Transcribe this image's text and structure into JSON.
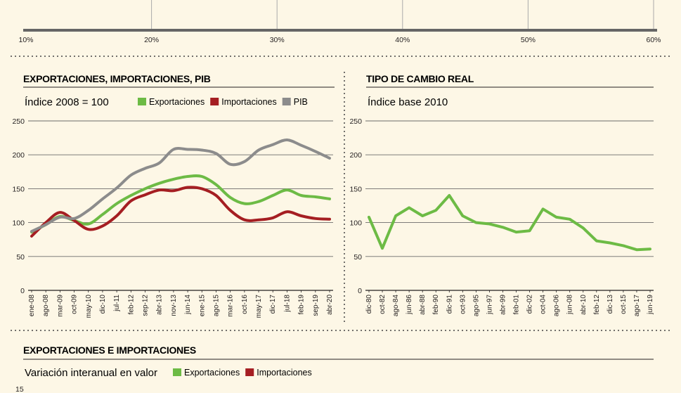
{
  "top_axis": {
    "ticks": [
      "10%",
      "20%",
      "30%",
      "40%",
      "50%",
      "60%"
    ]
  },
  "chart_data": [
    {
      "type": "line",
      "title": "EXPORTACIONES, IMPORTACIONES, PIB",
      "subtitle": "Índice 2008 = 100",
      "yticks": [
        0,
        50,
        100,
        150,
        200,
        250
      ],
      "ylim": [
        0,
        250
      ],
      "grid": true,
      "legend_placement": "top",
      "categories": [
        "ene-08",
        "ago-08",
        "mar-09",
        "oct-09",
        "may-10",
        "dic-10",
        "jul-11",
        "feb-12",
        "sep-12",
        "abr-13",
        "nov-13",
        "jun-14",
        "ene-15",
        "ago-15",
        "mar-16",
        "oct-16",
        "may-17",
        "dic-17",
        "jul-18",
        "feb-19",
        "sep-19",
        "abr-20"
      ],
      "series": [
        {
          "name": "Exportaciones",
          "color": "#6dbb45",
          "values": [
            86,
            97,
            109,
            103,
            98,
            112,
            128,
            140,
            150,
            158,
            164,
            168,
            168,
            156,
            137,
            128,
            131,
            140,
            148,
            140,
            138,
            135
          ]
        },
        {
          "name": "Importaciones",
          "color": "#a51e22",
          "values": [
            80,
            100,
            115,
            103,
            90,
            95,
            110,
            132,
            141,
            148,
            147,
            152,
            150,
            140,
            118,
            104,
            104,
            107,
            116,
            110,
            106,
            105
          ]
        },
        {
          "name": "PIB",
          "color": "#8c8c8c",
          "values": [
            87,
            97,
            108,
            106,
            118,
            135,
            151,
            170,
            180,
            188,
            208,
            208,
            207,
            202,
            186,
            190,
            207,
            215,
            222,
            214,
            205,
            195
          ]
        }
      ]
    },
    {
      "type": "line",
      "title": "TIPO DE CAMBIO REAL",
      "subtitle": "Índice base 2010",
      "yticks": [
        0,
        50,
        100,
        150,
        200,
        250
      ],
      "ylim": [
        0,
        250
      ],
      "grid": true,
      "categories": [
        "dic-80",
        "oct-82",
        "ago-84",
        "jun-86",
        "abr-88",
        "feb-90",
        "dic-91",
        "oct-93",
        "ago-95",
        "jun-97",
        "abr-99",
        "feb-01",
        "dic-02",
        "oct-04",
        "ago-06",
        "jun-08",
        "abr-10",
        "feb-12",
        "dic-13",
        "oct-15",
        "ago-17",
        "jun-19"
      ],
      "series": [
        {
          "name": "",
          "color": "#6dbb45",
          "values": [
            108,
            62,
            110,
            122,
            110,
            118,
            140,
            110,
            100,
            98,
            93,
            86,
            88,
            120,
            108,
            105,
            92,
            73,
            70,
            66,
            60,
            61
          ]
        }
      ]
    }
  ],
  "bottom_chart": {
    "title": "EXPORTACIONES E IMPORTACIONES",
    "subtitle": "Variación interanual en valor",
    "legend": [
      {
        "name": "Exportaciones",
        "color": "#6dbb45"
      },
      {
        "name": "Importaciones",
        "color": "#a51e22"
      }
    ],
    "first_ytick": "15"
  }
}
